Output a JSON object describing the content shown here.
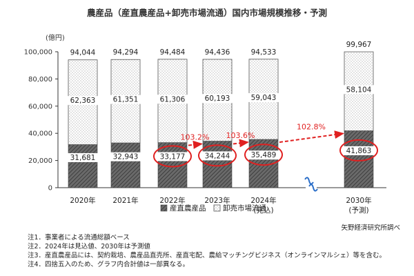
{
  "title": "農産品（産直農産品+卸売市場流通）国内市場規模推移・予測",
  "source": "矢野経済研究所調べ",
  "notes": [
    "注1．事業者による流通総額ベース",
    "注2．2024年は見込値、2030年は予測値",
    "注3．産直農産品には、契約栽培、農産品直売所、産直宅配、農給マッチングビジネス（オンラインマルシェ）等を含む。",
    "注4．四捨五入のため、グラフ内合計値は一部異なる。"
  ],
  "colors": {
    "accent": "#e02020",
    "bar_dark": "#555555",
    "bar_light": "#f2f2f2"
  },
  "chart_data": {
    "type": "bar",
    "stacked": true,
    "categories": [
      "2020年",
      "2021年",
      "2022年",
      "2023年",
      "2024年",
      "2030年"
    ],
    "category_sublabels": [
      "",
      "",
      "",
      "",
      "(見込)",
      "(予測)"
    ],
    "series": [
      {
        "name": "産直農産品",
        "values": [
          31681,
          32943,
          33177,
          34244,
          35489,
          41863
        ],
        "labels": [
          "31,681",
          "32,943",
          "33,177",
          "34,244",
          "35,489",
          "41,863"
        ]
      },
      {
        "name": "卸売市場流通",
        "values": [
          62363,
          61351,
          61306,
          60193,
          59043,
          58104
        ],
        "labels": [
          "62,363",
          "61,351",
          "61,306",
          "60,193",
          "59,043",
          "58,104"
        ]
      }
    ],
    "totals": [
      94044,
      94294,
      94484,
      94436,
      94533,
      99967
    ],
    "total_labels": [
      "94,044",
      "94,294",
      "94,484",
      "94,436",
      "94,533",
      "99,967"
    ],
    "ylabel": "(億円)",
    "ylim": [
      0,
      100000
    ],
    "yticks": [
      0,
      20000,
      40000,
      60000,
      80000,
      100000
    ],
    "ytick_labels": [
      "0",
      "20,000",
      "40,000",
      "60,000",
      "80,000",
      "100,000"
    ],
    "grid": false,
    "legend_position": "bottom",
    "axis_break_after_index": 4,
    "highlighted_indices": [
      2,
      3,
      4,
      5
    ],
    "growth_annotations": [
      {
        "from": 2,
        "to": 3,
        "label": "103.2%"
      },
      {
        "from": 3,
        "to": 4,
        "label": "103.6%"
      },
      {
        "from": 4,
        "to": 5,
        "label": "102.8%"
      }
    ]
  }
}
